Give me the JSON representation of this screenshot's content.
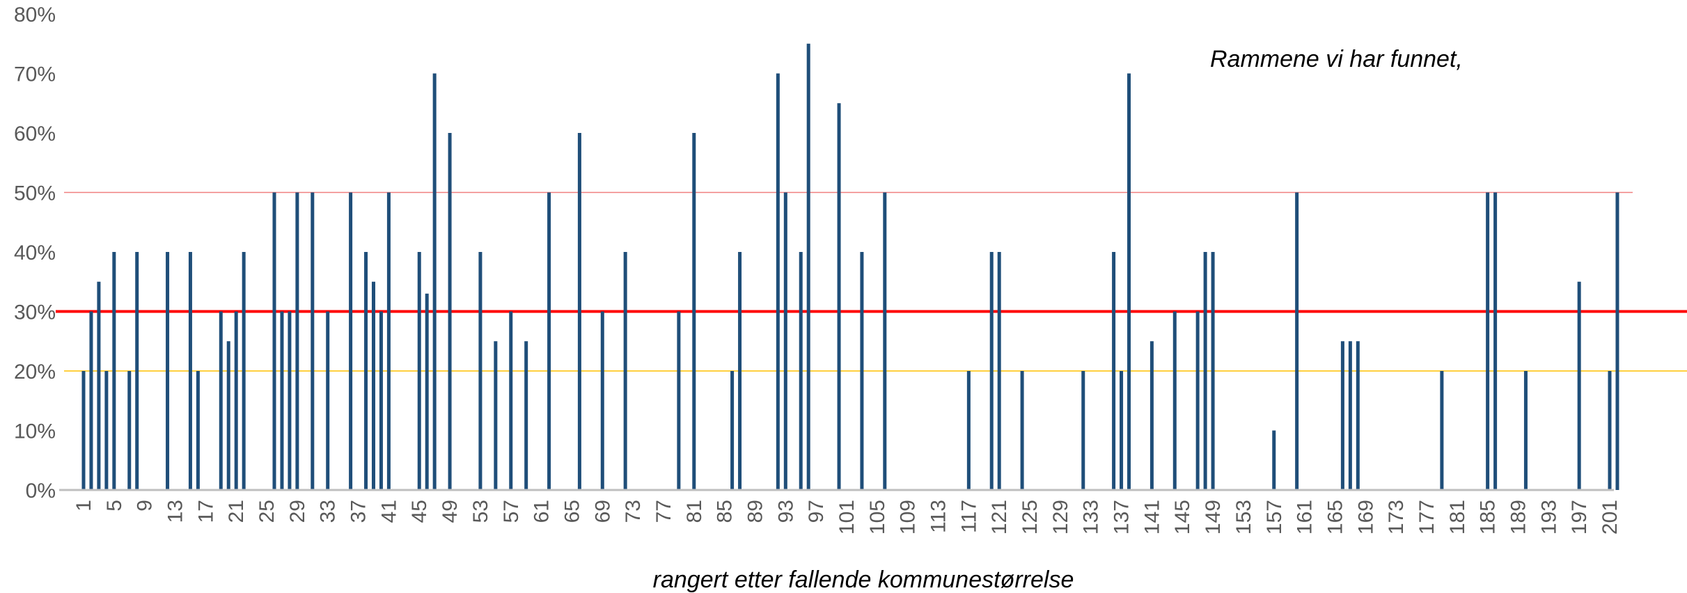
{
  "chart_data": {
    "type": "bar",
    "xlabel": "rangert etter fallende kommunestørrelse",
    "ylabel": "",
    "annotation": "Rammene vi har funnet,",
    "ylim": [
      0,
      0.8
    ],
    "y_ticks": [
      "0%",
      "10%",
      "20%",
      "30%",
      "40%",
      "50%",
      "60%",
      "70%",
      "80%"
    ],
    "y_tick_values": [
      0,
      0.1,
      0.2,
      0.3,
      0.4,
      0.5,
      0.6,
      0.7,
      0.8
    ],
    "x_range": [
      1,
      203
    ],
    "x_tick_labels": [
      "1",
      "5",
      "9",
      "13",
      "17",
      "21",
      "25",
      "29",
      "33",
      "37",
      "41",
      "45",
      "49",
      "53",
      "57",
      "61",
      "65",
      "69",
      "73",
      "77",
      "81",
      "85",
      "89",
      "93",
      "97",
      "101",
      "105",
      "109",
      "113",
      "117",
      "121",
      "125",
      "129",
      "133",
      "137",
      "141",
      "145",
      "149",
      "153",
      "157",
      "161",
      "165",
      "169",
      "173",
      "177",
      "181",
      "185",
      "189",
      "193",
      "197",
      "201"
    ],
    "reference_lines": [
      {
        "value": 0.5,
        "color": "#f08080"
      },
      {
        "value": 0.3,
        "color": "#ff0000"
      },
      {
        "value": 0.2,
        "color": "#ffc000"
      }
    ],
    "bar_color": "#1f4e79",
    "grid": false,
    "points": [
      {
        "x": 1,
        "y": 0.2
      },
      {
        "x": 2,
        "y": 0.3
      },
      {
        "x": 3,
        "y": 0.35
      },
      {
        "x": 4,
        "y": 0.2
      },
      {
        "x": 5,
        "y": 0.4
      },
      {
        "x": 7,
        "y": 0.2
      },
      {
        "x": 8,
        "y": 0.4
      },
      {
        "x": 12,
        "y": 0.4
      },
      {
        "x": 15,
        "y": 0.4
      },
      {
        "x": 16,
        "y": 0.2
      },
      {
        "x": 19,
        "y": 0.3
      },
      {
        "x": 20,
        "y": 0.25
      },
      {
        "x": 21,
        "y": 0.3
      },
      {
        "x": 22,
        "y": 0.4
      },
      {
        "x": 26,
        "y": 0.5
      },
      {
        "x": 27,
        "y": 0.3
      },
      {
        "x": 28,
        "y": 0.3
      },
      {
        "x": 29,
        "y": 0.5
      },
      {
        "x": 31,
        "y": 0.5
      },
      {
        "x": 33,
        "y": 0.3
      },
      {
        "x": 36,
        "y": 0.5
      },
      {
        "x": 38,
        "y": 0.4
      },
      {
        "x": 39,
        "y": 0.35
      },
      {
        "x": 40,
        "y": 0.3
      },
      {
        "x": 41,
        "y": 0.5
      },
      {
        "x": 45,
        "y": 0.4
      },
      {
        "x": 46,
        "y": 0.33
      },
      {
        "x": 47,
        "y": 0.7
      },
      {
        "x": 49,
        "y": 0.6
      },
      {
        "x": 53,
        "y": 0.4
      },
      {
        "x": 55,
        "y": 0.25
      },
      {
        "x": 57,
        "y": 0.3
      },
      {
        "x": 59,
        "y": 0.25
      },
      {
        "x": 62,
        "y": 0.5
      },
      {
        "x": 66,
        "y": 0.6
      },
      {
        "x": 69,
        "y": 0.3
      },
      {
        "x": 72,
        "y": 0.4
      },
      {
        "x": 79,
        "y": 0.3
      },
      {
        "x": 81,
        "y": 0.6
      },
      {
        "x": 86,
        "y": 0.2
      },
      {
        "x": 87,
        "y": 0.4
      },
      {
        "x": 92,
        "y": 0.7
      },
      {
        "x": 93,
        "y": 0.5
      },
      {
        "x": 95,
        "y": 0.4
      },
      {
        "x": 96,
        "y": 0.75
      },
      {
        "x": 100,
        "y": 0.65
      },
      {
        "x": 103,
        "y": 0.4
      },
      {
        "x": 106,
        "y": 0.5
      },
      {
        "x": 117,
        "y": 0.2
      },
      {
        "x": 120,
        "y": 0.4
      },
      {
        "x": 121,
        "y": 0.4
      },
      {
        "x": 124,
        "y": 0.2
      },
      {
        "x": 132,
        "y": 0.2
      },
      {
        "x": 136,
        "y": 0.4
      },
      {
        "x": 137,
        "y": 0.2
      },
      {
        "x": 138,
        "y": 0.7
      },
      {
        "x": 141,
        "y": 0.25
      },
      {
        "x": 144,
        "y": 0.3
      },
      {
        "x": 147,
        "y": 0.3
      },
      {
        "x": 148,
        "y": 0.4
      },
      {
        "x": 149,
        "y": 0.4
      },
      {
        "x": 157,
        "y": 0.1
      },
      {
        "x": 160,
        "y": 0.5
      },
      {
        "x": 166,
        "y": 0.25
      },
      {
        "x": 167,
        "y": 0.25
      },
      {
        "x": 168,
        "y": 0.25
      },
      {
        "x": 179,
        "y": 0.2
      },
      {
        "x": 185,
        "y": 0.5
      },
      {
        "x": 186,
        "y": 0.5
      },
      {
        "x": 190,
        "y": 0.2
      },
      {
        "x": 197,
        "y": 0.35
      },
      {
        "x": 201,
        "y": 0.2
      },
      {
        "x": 202,
        "y": 0.5
      }
    ]
  }
}
